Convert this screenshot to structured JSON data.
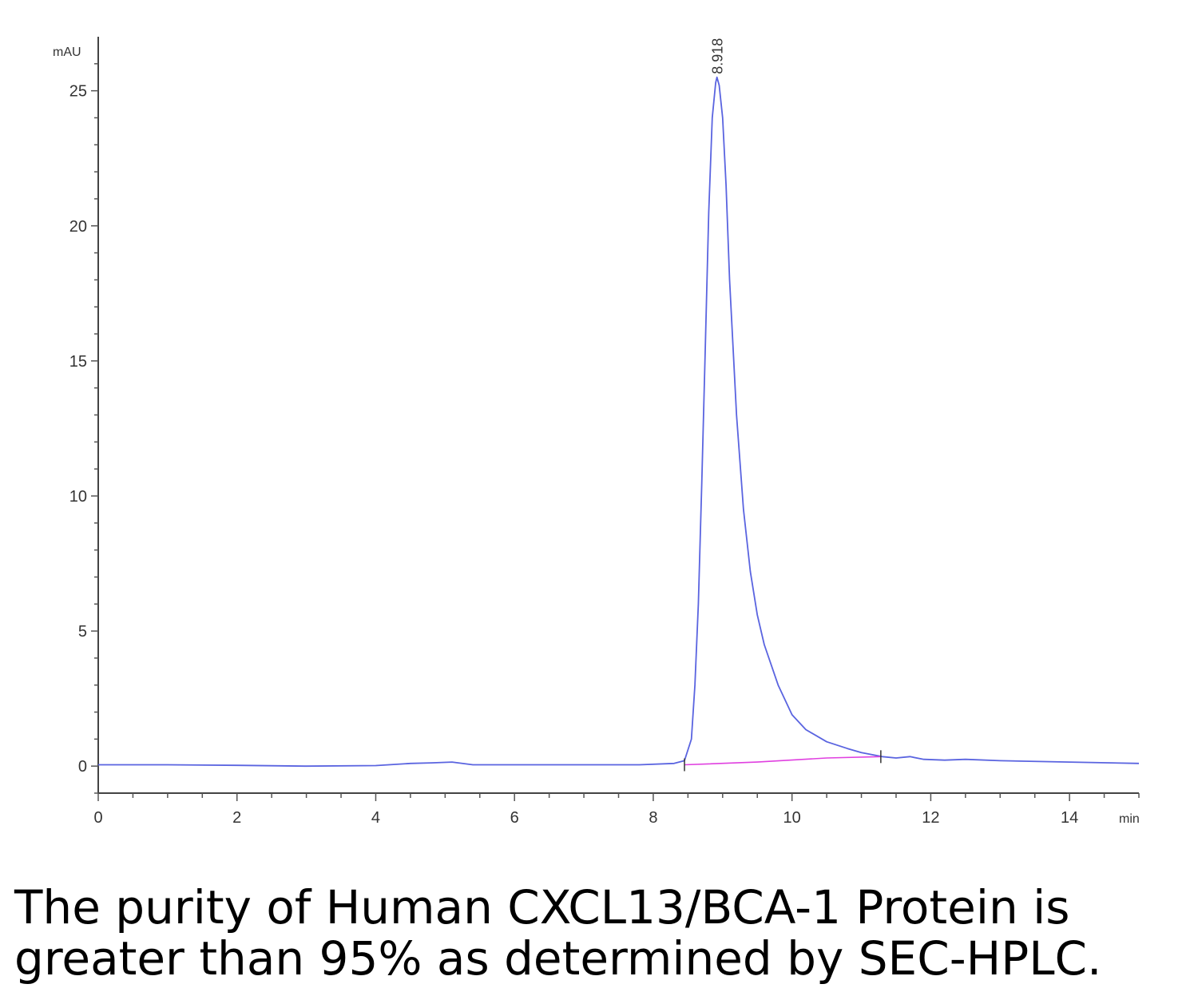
{
  "chart_data": {
    "type": "line",
    "title": "",
    "xlabel": "min",
    "ylabel": "mAU",
    "xlim": [
      0,
      15
    ],
    "ylim": [
      -1,
      27
    ],
    "x_ticks": [
      "0",
      "2",
      "4",
      "6",
      "8",
      "10",
      "12",
      "14"
    ],
    "y_ticks": [
      "0",
      "5",
      "10",
      "15",
      "20",
      "25"
    ],
    "grid": false,
    "peak_label": "8.918",
    "series": [
      {
        "color": "#5a64e0",
        "points": [
          [
            0,
            0.05
          ],
          [
            1,
            0.05
          ],
          [
            2,
            0.03
          ],
          [
            3,
            0.0
          ],
          [
            4,
            0.02
          ],
          [
            4.5,
            0.1
          ],
          [
            4.8,
            0.12
          ],
          [
            5.1,
            0.15
          ],
          [
            5.4,
            0.05
          ],
          [
            6,
            0.05
          ],
          [
            7,
            0.05
          ],
          [
            7.8,
            0.05
          ],
          [
            8.3,
            0.1
          ],
          [
            8.45,
            0.2
          ],
          [
            8.55,
            1.0
          ],
          [
            8.6,
            3.0
          ],
          [
            8.65,
            6.0
          ],
          [
            8.7,
            10.5
          ],
          [
            8.75,
            15.5
          ],
          [
            8.8,
            20.5
          ],
          [
            8.85,
            24.0
          ],
          [
            8.9,
            25.3
          ],
          [
            8.918,
            25.5
          ],
          [
            8.95,
            25.2
          ],
          [
            9.0,
            24.0
          ],
          [
            9.05,
            21.5
          ],
          [
            9.1,
            18.0
          ],
          [
            9.2,
            13.0
          ],
          [
            9.3,
            9.5
          ],
          [
            9.4,
            7.2
          ],
          [
            9.5,
            5.6
          ],
          [
            9.6,
            4.5
          ],
          [
            9.8,
            3.0
          ],
          [
            10.0,
            1.9
          ],
          [
            10.2,
            1.35
          ],
          [
            10.5,
            0.9
          ],
          [
            10.8,
            0.65
          ],
          [
            11.0,
            0.5
          ],
          [
            11.3,
            0.35
          ],
          [
            11.5,
            0.3
          ],
          [
            11.7,
            0.35
          ],
          [
            11.9,
            0.25
          ],
          [
            12.2,
            0.22
          ],
          [
            12.5,
            0.25
          ],
          [
            13,
            0.2
          ],
          [
            14,
            0.15
          ],
          [
            15,
            0.1
          ]
        ]
      },
      {
        "color": "#e040e0",
        "points": [
          [
            8.45,
            0.05
          ],
          [
            9.5,
            0.15
          ],
          [
            10.5,
            0.3
          ],
          [
            11.28,
            0.35
          ]
        ]
      }
    ]
  },
  "caption": {
    "line1": "The purity of Human CXCL13/BCA-1 Protein is",
    "line2": "greater than 95% as determined by SEC-HPLC."
  }
}
